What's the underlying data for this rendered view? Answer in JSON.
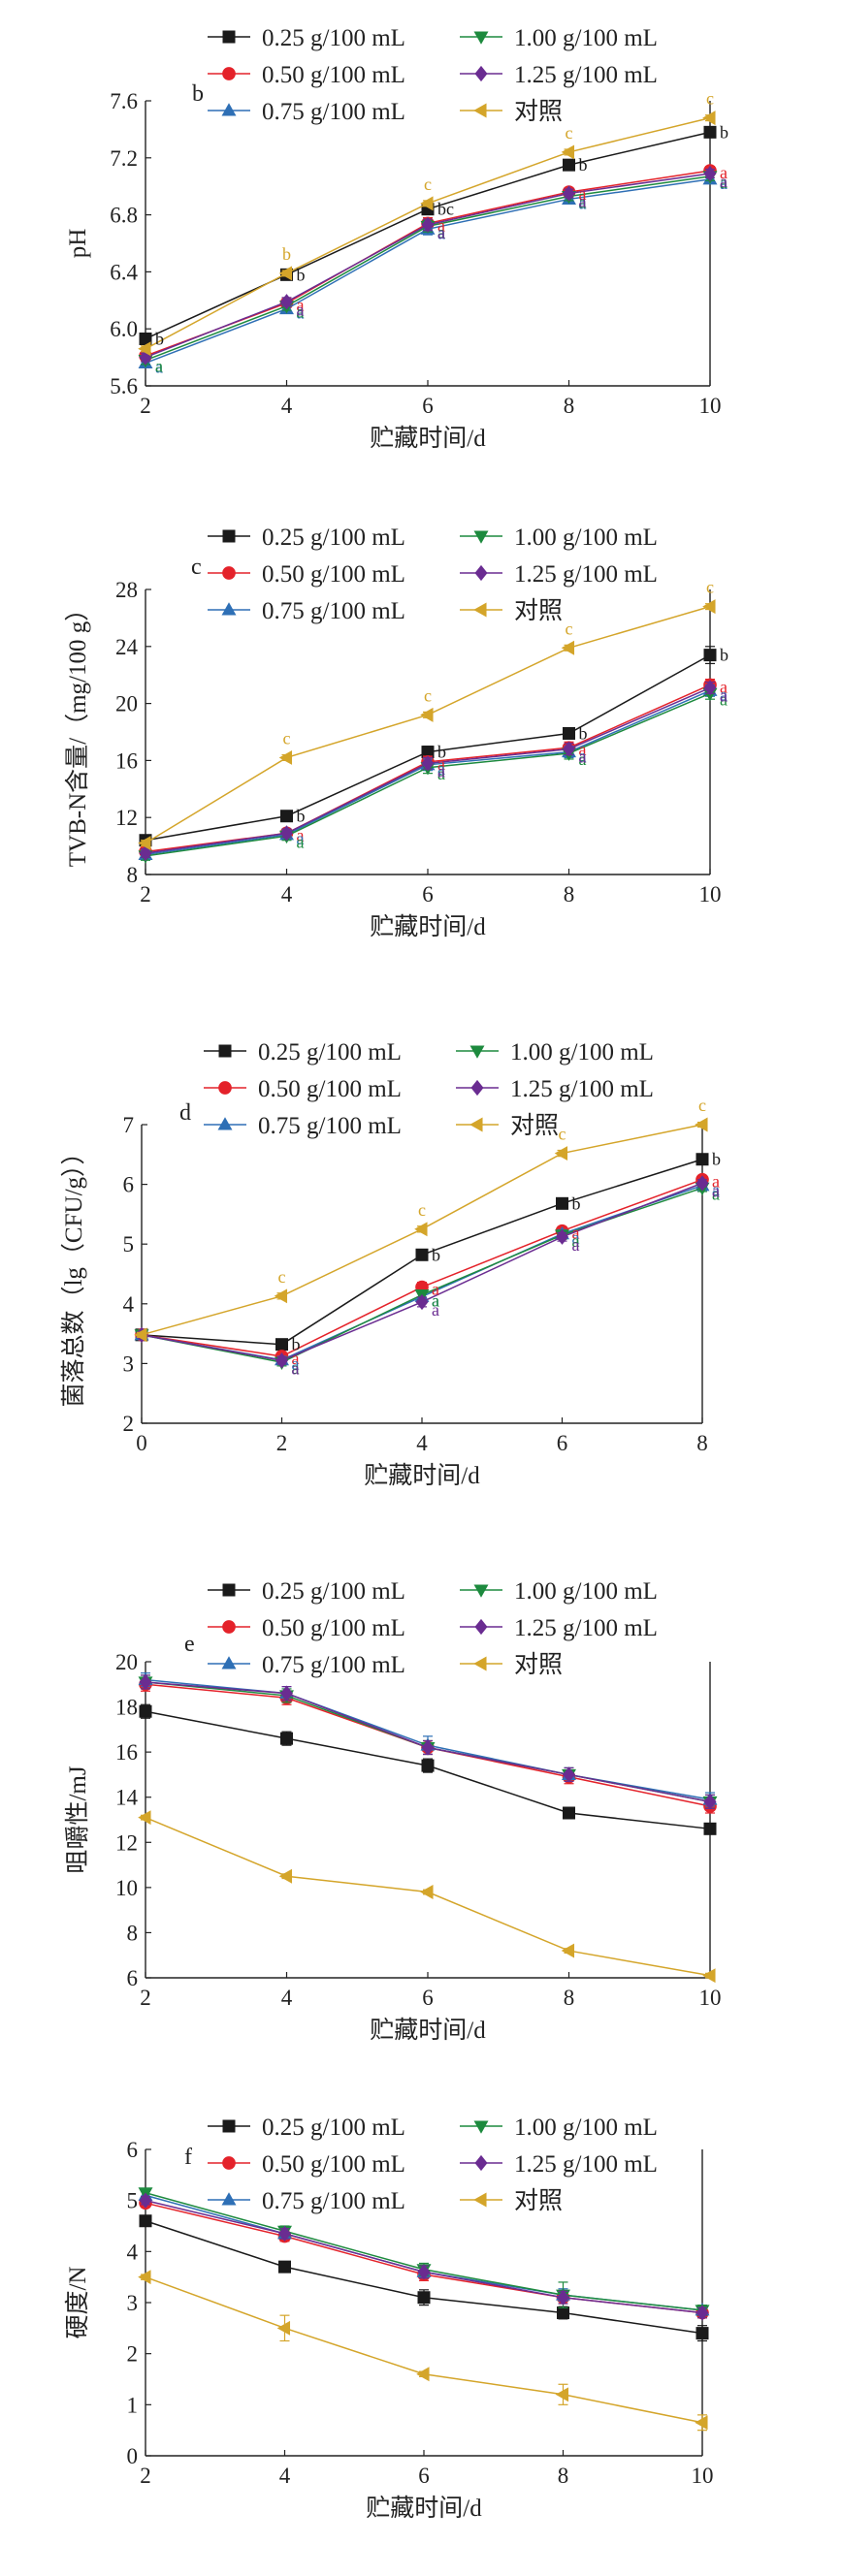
{
  "legend_entries": [
    "0.25 g/100 mL",
    "1.00 g/100 mL",
    "0.50 g/100 mL",
    "1.25 g/100 mL",
    "0.75 g/100 mL",
    "对照"
  ],
  "series_style": [
    {
      "color": "#1a1a1a",
      "marker": "square"
    },
    {
      "color": "#e4222a",
      "marker": "circle"
    },
    {
      "color": "#2e6fb5",
      "marker": "triangle-up"
    },
    {
      "color": "#1d8a3e",
      "marker": "triangle-down"
    },
    {
      "color": "#6a2c91",
      "marker": "diamond"
    },
    {
      "color": "#d4a52a",
      "marker": "triangle-left"
    }
  ],
  "chart_data": [
    {
      "type": "line",
      "panel": "b",
      "xlabel": "贮藏时间/d",
      "ylabel": "pH",
      "x": [
        2,
        4,
        6,
        8,
        10
      ],
      "xlim": [
        2,
        10
      ],
      "ylim": [
        5.6,
        7.6
      ],
      "yticks": [
        5.6,
        6.0,
        6.4,
        6.8,
        7.2,
        7.6
      ],
      "ytick_labels": [
        "5.6",
        "6.0",
        "6.4",
        "6.8",
        "7.2",
        "7.6"
      ],
      "series": [
        {
          "name": "0.25 g/100 mL",
          "values": [
            5.93,
            6.38,
            6.84,
            7.15,
            7.38
          ],
          "err": [
            0.04,
            0.02,
            0.03,
            0.03,
            0.03
          ]
        },
        {
          "name": "0.50 g/100 mL",
          "values": [
            5.81,
            6.18,
            6.74,
            6.96,
            7.11
          ],
          "err": [
            0.03,
            0.03,
            0.04,
            0.03,
            0.03
          ]
        },
        {
          "name": "0.75 g/100 mL",
          "values": [
            5.76,
            6.14,
            6.7,
            6.91,
            7.05
          ],
          "err": [
            0.03,
            0.03,
            0.04,
            0.03,
            0.03
          ]
        },
        {
          "name": "1.00 g/100 mL",
          "values": [
            5.78,
            6.16,
            6.72,
            6.93,
            7.07
          ],
          "err": [
            0.03,
            0.03,
            0.04,
            0.03,
            0.03
          ]
        },
        {
          "name": "1.25 g/100 mL",
          "values": [
            5.8,
            6.19,
            6.73,
            6.95,
            7.09
          ],
          "err": [
            0.03,
            0.03,
            0.04,
            0.03,
            0.03
          ]
        },
        {
          "name": "对照",
          "values": [
            5.86,
            6.39,
            6.88,
            7.24,
            7.48
          ],
          "err": [
            0.02,
            0.02,
            0.02,
            0.02,
            0.02
          ]
        }
      ],
      "annotations": [
        [
          "b",
          "b",
          "b",
          "b",
          "b"
        ],
        [
          "",
          "a",
          "a",
          "a",
          "a"
        ],
        [
          "a",
          "a",
          "a",
          "a",
          "a"
        ],
        [
          "a",
          "a",
          "a",
          "a",
          "a"
        ],
        [
          "",
          "a",
          "a",
          "a",
          "a"
        ],
        [
          "",
          "b",
          "c",
          "c",
          "c"
        ]
      ],
      "annotations_override": {
        "0": {
          "2": "bc"
        }
      }
    },
    {
      "type": "line",
      "panel": "c",
      "xlabel": "贮藏时间/d",
      "ylabel": "TVB-N含量/（mg/100 g）",
      "x": [
        2,
        4,
        6,
        8,
        10
      ],
      "xlim": [
        2,
        10
      ],
      "ylim": [
        8,
        28
      ],
      "yticks": [
        8,
        12,
        16,
        20,
        24,
        28
      ],
      "ytick_labels": [
        "8",
        "12",
        "16",
        "20",
        "24",
        "28"
      ],
      "series": [
        {
          "name": "0.25 g/100 mL",
          "values": [
            10.4,
            12.1,
            16.6,
            17.9,
            23.4
          ],
          "err": [
            0.3,
            0.3,
            0.4,
            0.4,
            0.6
          ]
        },
        {
          "name": "0.50 g/100 mL",
          "values": [
            9.6,
            10.9,
            15.9,
            16.9,
            21.3
          ],
          "err": [
            0.3,
            0.3,
            0.4,
            0.4,
            0.4
          ]
        },
        {
          "name": "0.75 g/100 mL",
          "values": [
            9.4,
            10.8,
            15.7,
            16.6,
            20.9
          ],
          "err": [
            0.3,
            0.3,
            0.4,
            0.4,
            0.4
          ]
        },
        {
          "name": "1.00 g/100 mL",
          "values": [
            9.3,
            10.7,
            15.5,
            16.5,
            20.7
          ],
          "err": [
            0.3,
            0.3,
            0.4,
            0.4,
            0.4
          ]
        },
        {
          "name": "1.25 g/100 mL",
          "values": [
            9.5,
            10.9,
            15.8,
            16.8,
            21.1
          ],
          "err": [
            0.3,
            0.3,
            0.4,
            0.4,
            0.4
          ]
        },
        {
          "name": "对照",
          "values": [
            10.2,
            16.2,
            19.2,
            23.9,
            26.8
          ],
          "err": [
            0.2,
            0.2,
            0.2,
            0.2,
            0.2
          ]
        }
      ],
      "annotations": [
        [
          "",
          "b",
          "b",
          "b",
          "b"
        ],
        [
          "",
          "a",
          "a",
          "a",
          "a"
        ],
        [
          "",
          "a",
          "a",
          "a",
          "a"
        ],
        [
          "",
          "a",
          "a",
          "a",
          "a"
        ],
        [
          "",
          "",
          "a",
          "a",
          "a"
        ],
        [
          "",
          "c",
          "c",
          "c",
          "c"
        ]
      ]
    },
    {
      "type": "line",
      "panel": "d",
      "xlabel": "贮藏时间/d",
      "ylabel": "菌落总数（lg（CFU/g））",
      "x": [
        0,
        2,
        4,
        6,
        8
      ],
      "xlim": [
        0,
        8
      ],
      "ylim": [
        2,
        7
      ],
      "yticks": [
        2,
        3,
        4,
        5,
        6,
        7
      ],
      "ytick_labels": [
        "2",
        "3",
        "4",
        "5",
        "6",
        "7"
      ],
      "series": [
        {
          "name": "0.25 g/100 mL",
          "values": [
            3.48,
            3.32,
            4.82,
            5.68,
            6.42
          ],
          "err": [
            0.05,
            0.06,
            0.08,
            0.07,
            0.06
          ]
        },
        {
          "name": "0.50 g/100 mL",
          "values": [
            3.48,
            3.12,
            4.28,
            5.22,
            6.08
          ],
          "err": [
            0.05,
            0.06,
            0.08,
            0.07,
            0.06
          ]
        },
        {
          "name": "0.75 g/100 mL",
          "values": [
            3.48,
            3.06,
            4.12,
            5.17,
            5.98
          ],
          "err": [
            0.05,
            0.06,
            0.08,
            0.07,
            0.06
          ]
        },
        {
          "name": "1.00 g/100 mL",
          "values": [
            3.48,
            3.02,
            4.15,
            5.15,
            5.94
          ],
          "err": [
            0.05,
            0.06,
            0.08,
            0.07,
            0.06
          ]
        },
        {
          "name": "1.25 g/100 mL",
          "values": [
            3.48,
            3.05,
            4.03,
            5.12,
            6.02
          ],
          "err": [
            0.05,
            0.06,
            0.08,
            0.07,
            0.06
          ]
        },
        {
          "name": "对照",
          "values": [
            3.48,
            4.13,
            5.25,
            6.52,
            7.0
          ],
          "err": [
            0.04,
            0.05,
            0.05,
            0.05,
            0.04
          ]
        }
      ],
      "annotations": [
        [
          "",
          "b",
          "b",
          "b",
          "b"
        ],
        [
          "",
          "a",
          "a",
          "a",
          "a"
        ],
        [
          "",
          "a",
          "a",
          "a",
          "a"
        ],
        [
          "",
          "a",
          "a",
          "a",
          "a"
        ],
        [
          "",
          "a",
          "a",
          "a",
          "a"
        ],
        [
          "",
          "c",
          "c",
          "c",
          "c"
        ]
      ]
    },
    {
      "type": "line",
      "panel": "e",
      "xlabel": "贮藏时间/d",
      "ylabel": "咀嚼性/mJ",
      "x": [
        2,
        4,
        6,
        8,
        10
      ],
      "xlim": [
        2,
        10
      ],
      "ylim": [
        6,
        20
      ],
      "yticks": [
        6,
        8,
        10,
        12,
        14,
        16,
        18,
        20
      ],
      "ytick_labels": [
        "6",
        "8",
        "10",
        "12",
        "14",
        "16",
        "18",
        "20"
      ],
      "series": [
        {
          "name": "0.25 g/100 mL",
          "values": [
            17.8,
            16.6,
            15.4,
            13.3,
            12.6
          ],
          "err": [
            0.3,
            0.3,
            0.3,
            0.2,
            0.2
          ]
        },
        {
          "name": "0.50 g/100 mL",
          "values": [
            19.0,
            18.4,
            16.2,
            14.9,
            13.6
          ],
          "err": [
            0.3,
            0.3,
            0.3,
            0.3,
            0.3
          ]
        },
        {
          "name": "0.75 g/100 mL",
          "values": [
            19.2,
            18.6,
            16.3,
            15.0,
            13.9
          ],
          "err": [
            0.3,
            0.3,
            0.4,
            0.3,
            0.3
          ]
        },
        {
          "name": "1.00 g/100 mL",
          "values": [
            19.1,
            18.5,
            16.2,
            15.0,
            13.8
          ],
          "err": [
            0.3,
            0.3,
            0.3,
            0.3,
            0.3
          ]
        },
        {
          "name": "1.25 g/100 mL",
          "values": [
            19.1,
            18.6,
            16.2,
            15.0,
            13.8
          ],
          "err": [
            0.3,
            0.3,
            0.3,
            0.3,
            0.3
          ]
        },
        {
          "name": "对照",
          "values": [
            13.1,
            10.5,
            9.8,
            7.2,
            6.1
          ],
          "err": [
            0.1,
            0.1,
            0.1,
            0.1,
            0.1
          ]
        }
      ]
    },
    {
      "type": "line",
      "panel": "f",
      "xlabel": "贮藏时间/d",
      "ylabel": "硬度/N",
      "x": [
        2,
        4,
        6,
        8,
        10
      ],
      "xlim": [
        2,
        10
      ],
      "ylim": [
        0,
        6
      ],
      "yticks": [
        0,
        1,
        2,
        3,
        4,
        5,
        6
      ],
      "ytick_labels": [
        "0",
        "1",
        "2",
        "3",
        "4",
        "5",
        "6"
      ],
      "series": [
        {
          "name": "0.25 g/100 mL",
          "values": [
            4.6,
            3.7,
            3.1,
            2.8,
            2.4
          ],
          "err": [
            0.08,
            0.08,
            0.15,
            0.12,
            0.15
          ]
        },
        {
          "name": "0.50 g/100 mL",
          "values": [
            4.95,
            4.3,
            3.55,
            3.1,
            2.8
          ],
          "err": [
            0.08,
            0.1,
            0.12,
            0.12,
            0.1
          ]
        },
        {
          "name": "0.75 g/100 mL",
          "values": [
            5.1,
            4.35,
            3.6,
            3.15,
            2.85
          ],
          "err": [
            0.08,
            0.1,
            0.12,
            0.12,
            0.1
          ]
        },
        {
          "name": "1.00 g/100 mL",
          "values": [
            5.15,
            4.4,
            3.65,
            3.15,
            2.85
          ],
          "err": [
            0.08,
            0.1,
            0.12,
            0.25,
            0.1
          ]
        },
        {
          "name": "1.25 g/100 mL",
          "values": [
            5.0,
            4.35,
            3.6,
            3.1,
            2.8
          ],
          "err": [
            0.08,
            0.1,
            0.12,
            0.12,
            0.1
          ]
        },
        {
          "name": "对照",
          "values": [
            3.5,
            2.5,
            1.6,
            1.2,
            0.65
          ],
          "err": [
            0.05,
            0.25,
            0.05,
            0.2,
            0.15
          ]
        }
      ]
    }
  ]
}
